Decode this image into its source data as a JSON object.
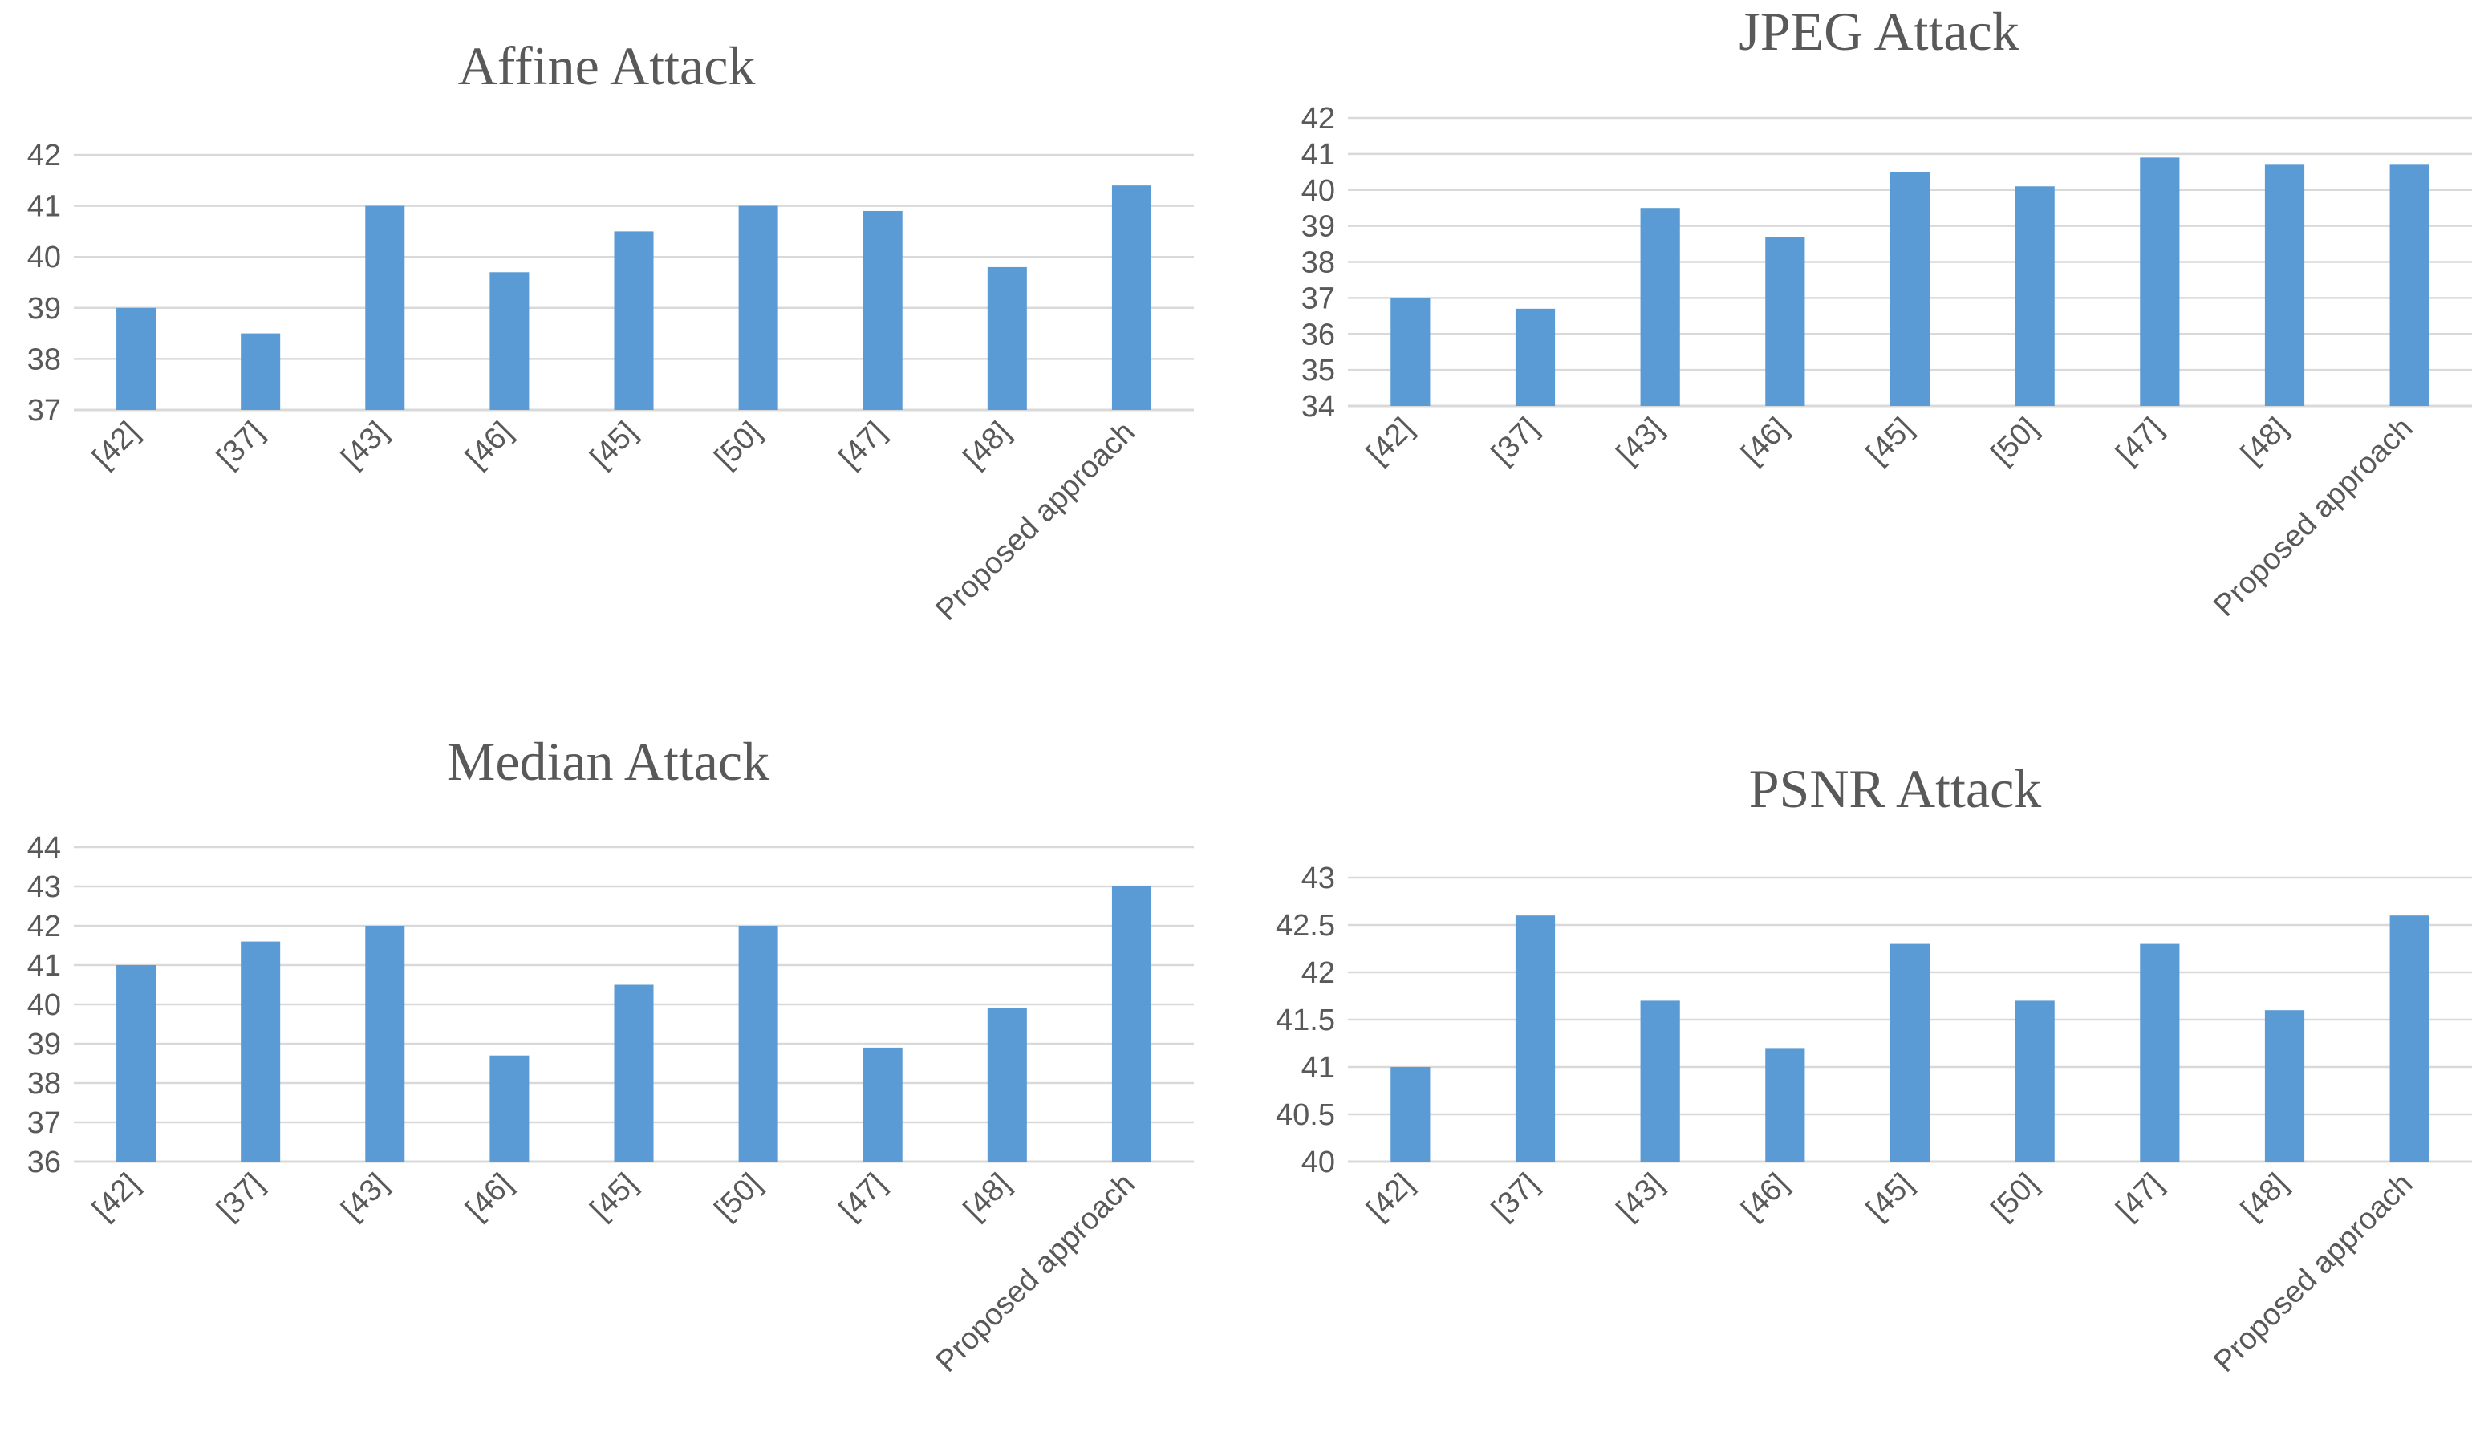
{
  "chart_data": [
    {
      "type": "bar",
      "title": "Affine Attack",
      "categories": [
        "[42]",
        "[37]",
        "[43]",
        "[46]",
        "[45]",
        "[50]",
        "[47]",
        "[48]",
        "Proposed approach"
      ],
      "values": [
        39,
        38.5,
        41,
        39.7,
        40.5,
        41,
        40.9,
        39.8,
        41.4
      ],
      "yticks": [
        37,
        38,
        39,
        40,
        41,
        42
      ],
      "ylim": [
        37,
        42
      ],
      "xlabel": "",
      "ylabel": "",
      "grid": true,
      "legend": "none",
      "bar_color": "#5b9bd5"
    },
    {
      "type": "bar",
      "title": "JPEG Attack",
      "categories": [
        "[42]",
        "[37]",
        "[43]",
        "[46]",
        "[45]",
        "[50]",
        "[47]",
        "[48]",
        "Proposed approach"
      ],
      "values": [
        37,
        36.7,
        39.5,
        38.7,
        40.5,
        40.1,
        40.9,
        40.7,
        40.7
      ],
      "yticks": [
        34,
        35,
        36,
        37,
        38,
        39,
        40,
        41,
        42
      ],
      "ylim": [
        34,
        42
      ],
      "xlabel": "",
      "ylabel": "",
      "grid": true,
      "legend": "none",
      "bar_color": "#5b9bd5"
    },
    {
      "type": "bar",
      "title": "Median Attack",
      "categories": [
        "[42]",
        "[37]",
        "[43]",
        "[46]",
        "[45]",
        "[50]",
        "[47]",
        "[48]",
        "Proposed approach"
      ],
      "values": [
        41,
        41.6,
        42,
        38.7,
        40.5,
        42,
        38.9,
        39.9,
        43
      ],
      "yticks": [
        36,
        37,
        38,
        39,
        40,
        41,
        42,
        43,
        44
      ],
      "ylim": [
        36,
        44
      ],
      "xlabel": "",
      "ylabel": "",
      "grid": true,
      "legend": "none",
      "bar_color": "#5b9bd5"
    },
    {
      "type": "bar",
      "title": "PSNR Attack",
      "categories": [
        "[42]",
        "[37]",
        "[43]",
        "[46]",
        "[45]",
        "[50]",
        "[47]",
        "[48]",
        "Proposed approach"
      ],
      "values": [
        41,
        42.6,
        41.7,
        41.2,
        42.3,
        41.7,
        42.3,
        41.6,
        42.6
      ],
      "yticks": [
        40,
        40.5,
        41,
        41.5,
        42,
        42.5,
        43
      ],
      "ylim": [
        40,
        43
      ],
      "xlabel": "",
      "ylabel": "",
      "grid": true,
      "legend": "none",
      "bar_color": "#5b9bd5"
    }
  ]
}
